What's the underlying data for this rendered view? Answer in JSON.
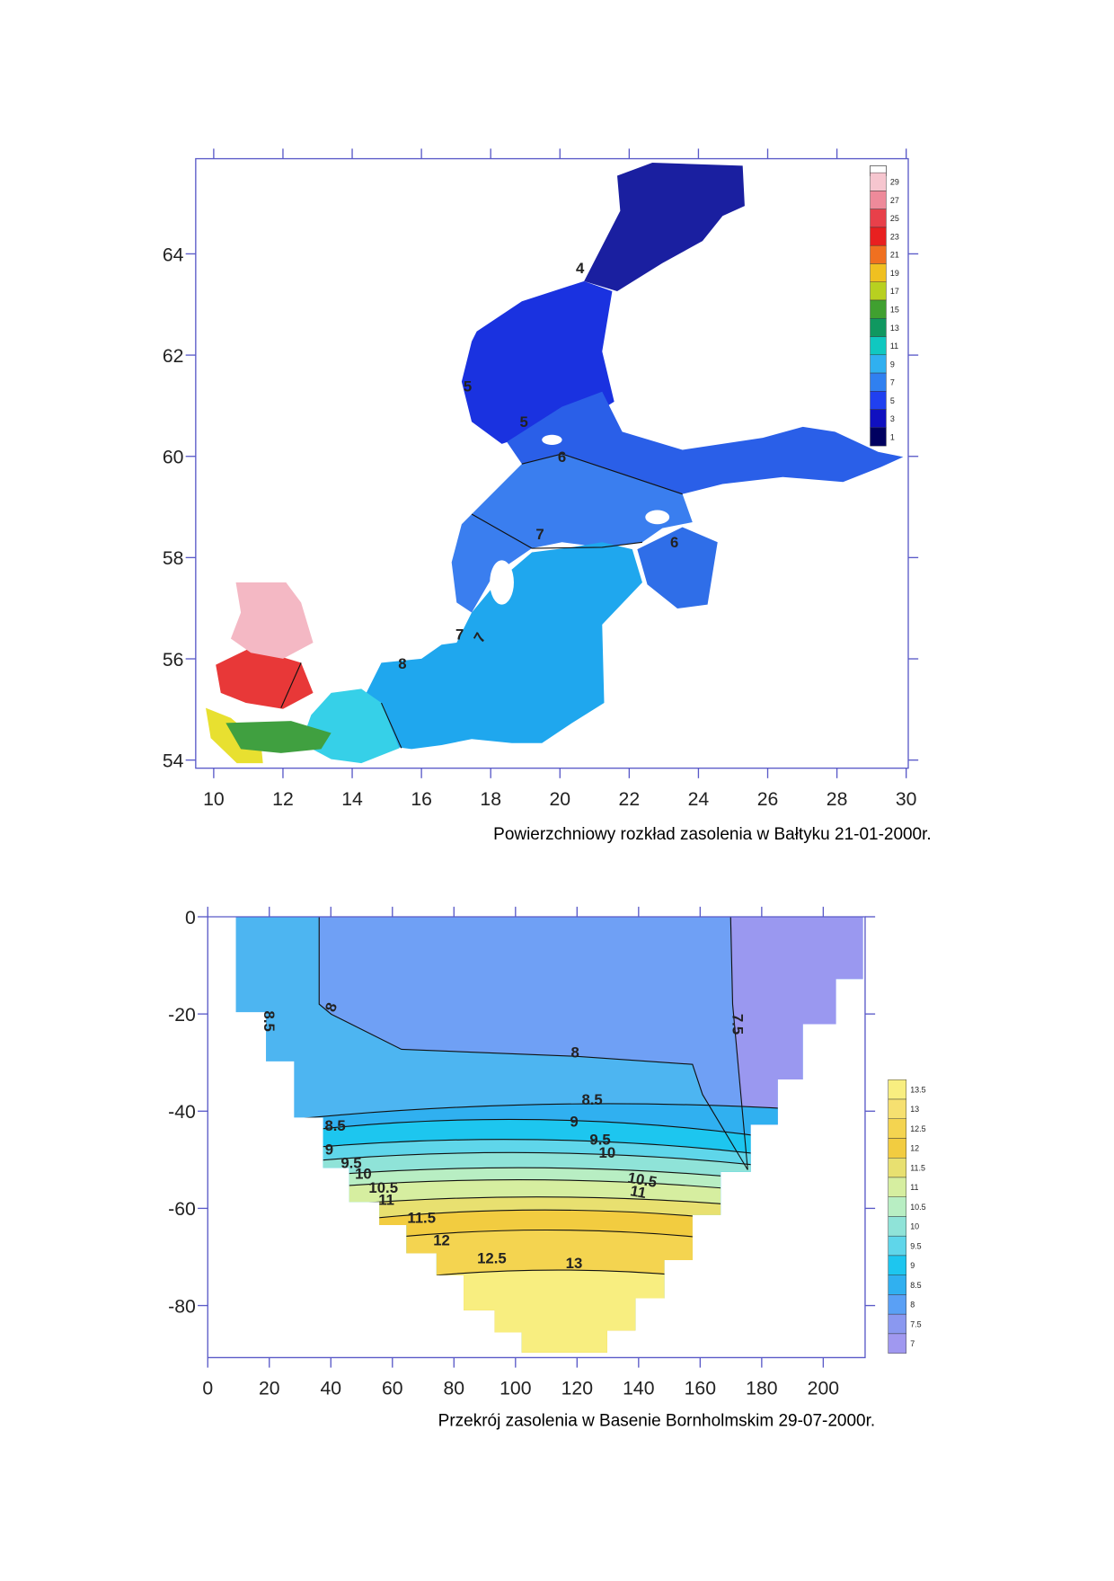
{
  "figures": [
    {
      "xlim": [
        9.48,
        30.06
      ],
      "ylim": [
        53.84,
        65.88
      ],
      "xticks": [
        10,
        12,
        14,
        16,
        18,
        20,
        22,
        24,
        26,
        28,
        30
      ],
      "yticks": [
        54,
        56,
        58,
        60,
        62,
        64
      ],
      "colorbar": {
        "labels": [
          29,
          27,
          25,
          23,
          21,
          19,
          17,
          15,
          13,
          11,
          9,
          7,
          5,
          3,
          1
        ],
        "colors": [
          "#f6c6cf",
          "#ee8a9a",
          "#e8404a",
          "#e82020",
          "#f07020",
          "#f0c020",
          "#b8d020",
          "#40a030",
          "#109860",
          "#10c8c0",
          "#30b0f0",
          "#3080f0",
          "#2040f0",
          "#1010c0",
          "#000060"
        ]
      },
      "contour_labels": [
        4,
        5,
        5,
        6,
        7,
        7,
        7,
        6,
        8
      ],
      "caption": "Powierzchniowy rozkład zasolenia w Bałtyku 21-01-2000r."
    },
    {
      "xlim": [
        0,
        213.6
      ],
      "ylim": [
        -90.7,
        0
      ],
      "xticks": [
        0,
        20,
        40,
        60,
        80,
        100,
        120,
        140,
        160,
        180,
        200
      ],
      "yticks": [
        0,
        -20,
        -40,
        -60,
        -80
      ],
      "colorbar": {
        "labels": [
          13.5,
          13,
          12.5,
          12,
          11.5,
          11,
          10.5,
          10,
          9.5,
          9,
          8.5,
          8,
          7.5,
          7
        ],
        "colors": [
          "#f8ee80",
          "#f6e070",
          "#f4d450",
          "#f2cc40",
          "#e8e070",
          "#d6eea0",
          "#b8eec3",
          "#8fe3d8",
          "#5fd6ea",
          "#1dc6ef",
          "#30b0f0",
          "#5aa0f5",
          "#8a98f0",
          "#a098f0"
        ]
      },
      "contour_labels": [
        8.5,
        8,
        8,
        7.5,
        8.5,
        9,
        8.5,
        9,
        9.5,
        10,
        9.5,
        10,
        10.5,
        11,
        10.5,
        11,
        11.5,
        12,
        12.5,
        13
      ],
      "caption": "Przekrój zasolenia w Basenie Bornholmskim 29-07-2000r."
    }
  ]
}
